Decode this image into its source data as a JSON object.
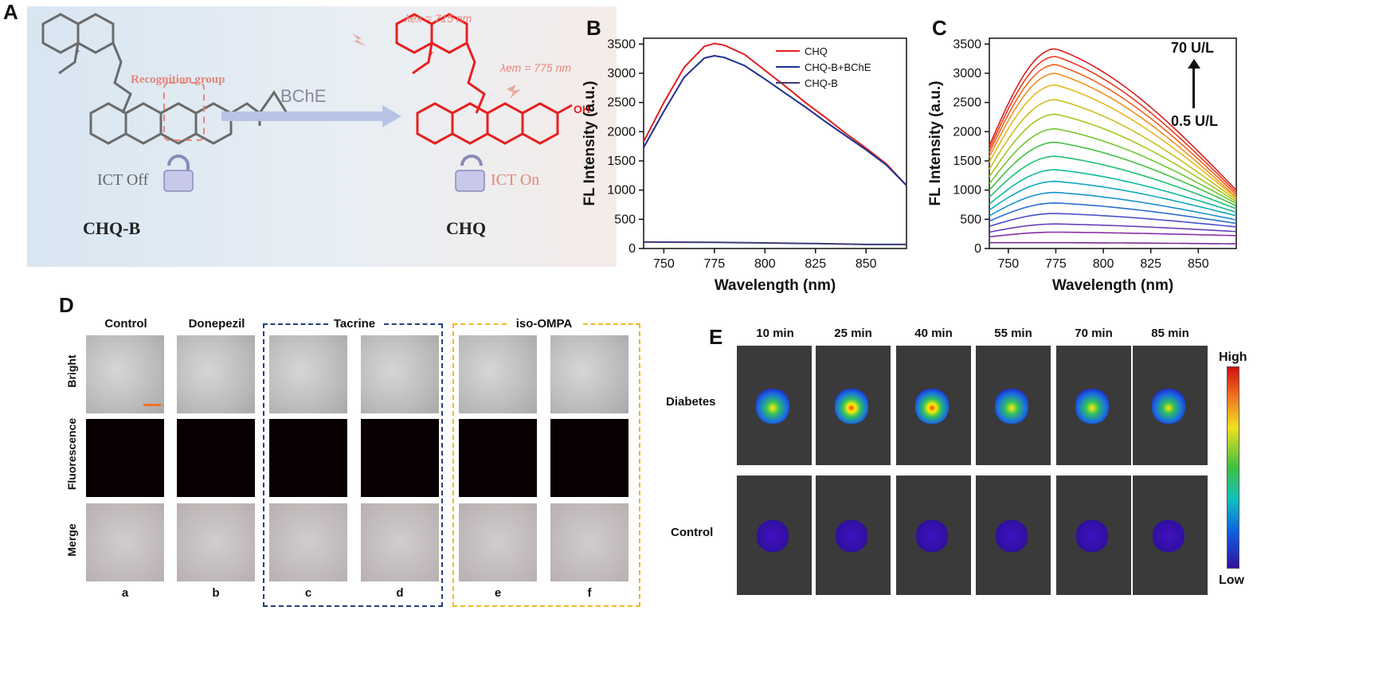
{
  "panels": {
    "a": {
      "label": "A",
      "lambda_ex": "λex = 715 nm",
      "lambda_em": "λem = 775 nm",
      "recognition": "Recognition group",
      "enzyme": "BChE",
      "ict_off": "ICT Off",
      "ict_on": "ICT On",
      "left_compound": "CHQ-B",
      "right_compound": "CHQ",
      "oh": "OH",
      "charge": "+"
    },
    "b": {
      "label": "B"
    },
    "c": {
      "label": "C",
      "top_label": "70 U/L",
      "bottom_label": "0.5 U/L"
    },
    "d": {
      "label": "D",
      "columns": [
        "Control",
        "Donepezil",
        "Tacrine",
        "iso-OMPA"
      ],
      "rows": [
        "Bright",
        "Fluorescence",
        "Merge"
      ],
      "letters": [
        "a",
        "b",
        "c",
        "d",
        "e",
        "f"
      ]
    },
    "e": {
      "label": "E",
      "times": [
        "10 min",
        "25 min",
        "40 min",
        "55 min",
        "70 min",
        "85 min"
      ],
      "rows": [
        "Diabetes",
        "Control"
      ],
      "scale_high": "High",
      "scale_low": "Low"
    }
  },
  "chart_data": [
    {
      "type": "line",
      "panel": "B",
      "xlabel": "Wavelength (nm)",
      "ylabel": "FL Intensity (a.u.)",
      "xlim": [
        740,
        870
      ],
      "ylim": [
        0,
        3600
      ],
      "xticks": [
        750,
        775,
        800,
        825,
        850
      ],
      "yticks": [
        0,
        500,
        1000,
        1500,
        2000,
        2500,
        3000,
        3500
      ],
      "legend_position": "top-right",
      "series": [
        {
          "name": "CHQ",
          "color": "#e02020",
          "x": [
            740,
            750,
            760,
            770,
            775,
            780,
            790,
            800,
            810,
            820,
            830,
            840,
            850,
            860,
            870
          ],
          "y": [
            1830,
            2500,
            3100,
            3460,
            3510,
            3480,
            3320,
            3050,
            2780,
            2500,
            2240,
            1970,
            1720,
            1450,
            1080
          ]
        },
        {
          "name": "CHQ-B+BChE",
          "color": "#1f2f8f",
          "x": [
            740,
            750,
            760,
            770,
            775,
            780,
            790,
            800,
            810,
            820,
            830,
            840,
            850,
            860,
            870
          ],
          "y": [
            1730,
            2350,
            2930,
            3260,
            3300,
            3270,
            3130,
            2900,
            2660,
            2420,
            2170,
            1930,
            1690,
            1430,
            1080
          ]
        },
        {
          "name": "CHQ-B",
          "color": "#3a3a7a",
          "x": [
            740,
            775,
            800,
            825,
            850,
            870
          ],
          "y": [
            110,
            105,
            95,
            85,
            70,
            70
          ]
        }
      ]
    },
    {
      "type": "line",
      "panel": "C",
      "xlabel": "Wavelength (nm)",
      "ylabel": "FL Intensity (a.u.)",
      "xlim": [
        740,
        870
      ],
      "ylim": [
        0,
        3600
      ],
      "xticks": [
        750,
        775,
        800,
        825,
        850
      ],
      "yticks": [
        0,
        500,
        1000,
        1500,
        2000,
        2500,
        3000,
        3500
      ],
      "peak_x": 775,
      "peaks": [
        100,
        280,
        420,
        600,
        780,
        960,
        1150,
        1350,
        1580,
        1820,
        2050,
        2300,
        2550,
        2800,
        3000,
        3150,
        3290,
        3420
      ],
      "start_values": [
        100,
        200,
        280,
        380,
        470,
        560,
        660,
        760,
        880,
        1000,
        1110,
        1230,
        1360,
        1480,
        1570,
        1640,
        1700,
        1760
      ],
      "end_values": [
        80,
        220,
        290,
        370,
        430,
        490,
        560,
        620,
        680,
        730,
        770,
        800,
        830,
        860,
        880,
        920,
        960,
        1000
      ],
      "colors": [
        "#7b2a9a",
        "#8a2ea8",
        "#6a3fb8",
        "#4a4fc8",
        "#2a6fd0",
        "#1a90d0",
        "#10a8c0",
        "#10b8a0",
        "#20c070",
        "#40c040",
        "#70c830",
        "#a0c820",
        "#c8c020",
        "#e8b820",
        "#f09020",
        "#f06020",
        "#e83a20",
        "#d82020"
      ]
    }
  ]
}
